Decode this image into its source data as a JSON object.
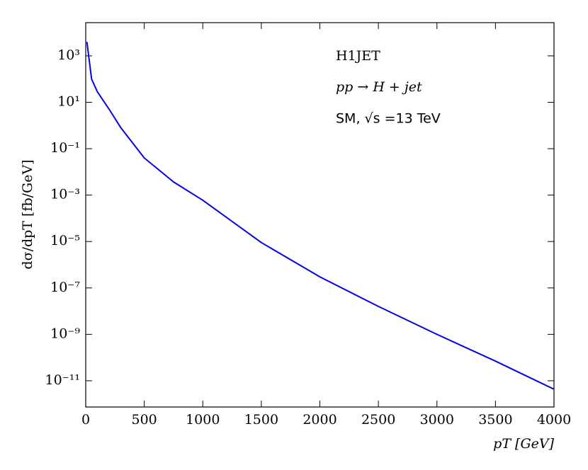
{
  "chart_data": {
    "type": "line",
    "x_label": "pT [GeV]",
    "y_label": "dσ/dpT [fb/GeV]",
    "annotations": [
      "H1JET",
      "pp → H + jet",
      "SM, √s =13 TeV"
    ],
    "x": [
      10,
      50,
      100,
      200,
      300,
      500,
      750,
      1000,
      1500,
      2000,
      2500,
      3000,
      3500,
      4000
    ],
    "series": [
      {
        "name": "SM",
        "color": "#0000ee",
        "values": [
          4000,
          100,
          28,
          5,
          0.8,
          0.04,
          0.0037,
          0.0006,
          9e-06,
          3e-07,
          1.6e-08,
          1e-09,
          7e-11,
          4.3e-12
        ]
      }
    ],
    "xlim": [
      0,
      4000
    ],
    "xticks": [
      0,
      500,
      1000,
      1500,
      2000,
      2500,
      3000,
      3500,
      4000
    ],
    "ylim": [
      7.4e-13,
      27000
    ],
    "log_y": true,
    "yticks": [
      {
        "value": 1000,
        "label": "10³"
      },
      {
        "value": 10,
        "label": "10¹"
      },
      {
        "value": 0.1,
        "label": "10⁻¹"
      },
      {
        "value": 0.001,
        "label": "10⁻³"
      },
      {
        "value": 1e-05,
        "label": "10⁻⁵"
      },
      {
        "value": 1e-07,
        "label": "10⁻⁷"
      },
      {
        "value": 1e-09,
        "label": "10⁻⁹"
      },
      {
        "value": 1e-11,
        "label": "10⁻¹¹"
      }
    ]
  }
}
